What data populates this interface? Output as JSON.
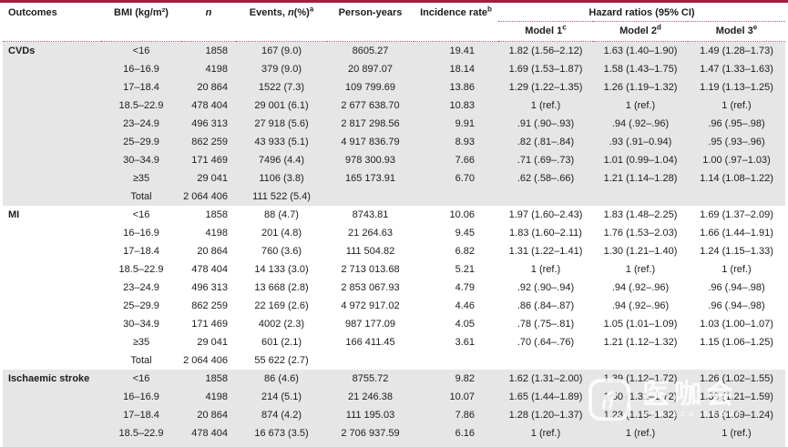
{
  "header": {
    "outcomes": "Outcomes",
    "bmi": "BMI (kg/m²)",
    "n": "n",
    "events_prefix": "Events, ",
    "events_n": "n",
    "events_suffix": "(%)",
    "events_sup": "a",
    "person_years": "Person-years",
    "incidence": "Incidence rate",
    "incidence_sup": "b",
    "hazard": "Hazard ratios (95% CI)",
    "models": [
      {
        "label": "Model 1",
        "sup": "c"
      },
      {
        "label": "Model 2",
        "sup": "d"
      },
      {
        "label": "Model 3",
        "sup": "e"
      }
    ]
  },
  "sections": [
    {
      "outcome": "CVDs",
      "shaded": true,
      "rows": [
        [
          "<16",
          "1858",
          "167 (9.0)",
          "8605.27",
          "19.41",
          "1.82 (1.56–2.12)",
          "1.63 (1.40–1.90)",
          "1.49 (1.28–1.73)"
        ],
        [
          "16–16.9",
          "4198",
          "379 (9.0)",
          "20 897.07",
          "18.14",
          "1.69 (1.53–1.87)",
          "1.58 (1.43–1.75)",
          "1.47 (1.33–1.63)"
        ],
        [
          "17–18.4",
          "20 864",
          "1522 (7.3)",
          "109 799.69",
          "13.86",
          "1.29 (1.22–1.35)",
          "1.26 (1.19–1.32)",
          "1.19 (1.13–1.25)"
        ],
        [
          "18.5–22.9",
          "478 404",
          "29 001 (6.1)",
          "2 677 638.70",
          "10.83",
          "1 (ref.)",
          "1 (ref.)",
          "1 (ref.)"
        ],
        [
          "23–24.9",
          "496 313",
          "27 918 (5.6)",
          "2 817 298.56",
          "9.91",
          ".91 (.90–.93)",
          ".94 (.92–.96)",
          ".96 (.95–.98)"
        ],
        [
          "25–29.9",
          "862 259",
          "43 933 (5.1)",
          "4 917 836.79",
          "8.93",
          ".82 (.81–.84)",
          ".93 (.91–0.94)",
          ".95 (.93–.96)"
        ],
        [
          "30–34.9",
          "171 469",
          "7496 (4.4)",
          "978 300.93",
          "7.66",
          ".71 (.69–.73)",
          "1.01 (0.99–1.04)",
          "1.00 (.97–1.03)"
        ],
        [
          "≥35",
          "29 041",
          "1106 (3.8)",
          "165 173.91",
          "6.70",
          ".62 (.58–.66)",
          "1.21 (1.14–1.28)",
          "1.14 (1.08–1.22)"
        ],
        [
          "Total",
          "2 064 406",
          "111 522 (5.4)",
          "",
          "",
          "",
          "",
          ""
        ]
      ]
    },
    {
      "outcome": "MI",
      "shaded": false,
      "rows": [
        [
          "<16",
          "1858",
          "88 (4.7)",
          "8743.81",
          "10.06",
          "1.97 (1.60–2.43)",
          "1.83 (1.48–2.25)",
          "1.69 (1.37–2.09)"
        ],
        [
          "16–16.9",
          "4198",
          "201 (4.8)",
          "21 264.63",
          "9.45",
          "1.83 (1.60–2.11)",
          "1.76 (1.53–2.03)",
          "1.66 (1.44–1.91)"
        ],
        [
          "17–18.4",
          "20 864",
          "760 (3.6)",
          "111 504.82",
          "6.82",
          "1.31 (1.22–1.41)",
          "1.30 (1.21–1.40)",
          "1.24 (1.15–1.33)"
        ],
        [
          "18.5–22.9",
          "478 404",
          "14 133 (3.0)",
          "2 713 013.68",
          "5.21",
          "1 (ref.)",
          "1 (ref.)",
          "1 (ref.)"
        ],
        [
          "23–24.9",
          "496 313",
          "13 668 (2.8)",
          "2 853 067.93",
          "4.79",
          ".92 (.90–.94)",
          ".94 (.92–.96)",
          ".96 (.94–.98)"
        ],
        [
          "25–29.9",
          "862 259",
          "22 169 (2.6)",
          "4 972 917.02",
          "4.46",
          ".86 (.84–.87)",
          ".94 (.92–.96)",
          ".96 (.94–.98)"
        ],
        [
          "30–34.9",
          "171 469",
          "4002 (2.3)",
          "987 177.09",
          "4.05",
          ".78 (.75–.81)",
          "1.05 (1.01–1.09)",
          "1.03 (1.00–1.07)"
        ],
        [
          "≥35",
          "29 041",
          "601 (2.1)",
          "166 411.45",
          "3.61",
          ".70 (.64–.76)",
          "1.21 (1.12–1.32)",
          "1.15 (1.06–1.25)"
        ],
        [
          "Total",
          "2 064 406",
          "55 622 (2.7)",
          "",
          "",
          "",
          "",
          ""
        ]
      ]
    },
    {
      "outcome": "Ischaemic stroke",
      "shaded": true,
      "rows": [
        [
          "<16",
          "1858",
          "86 (4.6)",
          "8755.72",
          "9.82",
          "1.62 (1.31–2.00)",
          "1.39 (1.12–1.72)",
          "1.26 (1.02–1.55)"
        ],
        [
          "16–16.9",
          "4198",
          "214 (5.1)",
          "21 246.38",
          "10.07",
          "1.65 (1.44–1.89)",
          "1.50 (1.31–1.72)",
          "1.39 (1.21–1.59)"
        ],
        [
          "17–18.4",
          "20 864",
          "874 (4.2)",
          "111 195.03",
          "7.86",
          "1.28 (1.20–1.37)",
          "1.23 (1.15–1.32)",
          "1.16 (1.09–1.24)"
        ],
        [
          "18.5–22.9",
          "478 404",
          "16 673 (3.5)",
          "2 706 937.59",
          "6.16",
          "1 (ref.)",
          "1 (ref.)",
          "1 (ref.)"
        ]
      ]
    }
  ],
  "watermark": {
    "cjk": "医咖会",
    "sub": "MEDIECO GROUP"
  }
}
